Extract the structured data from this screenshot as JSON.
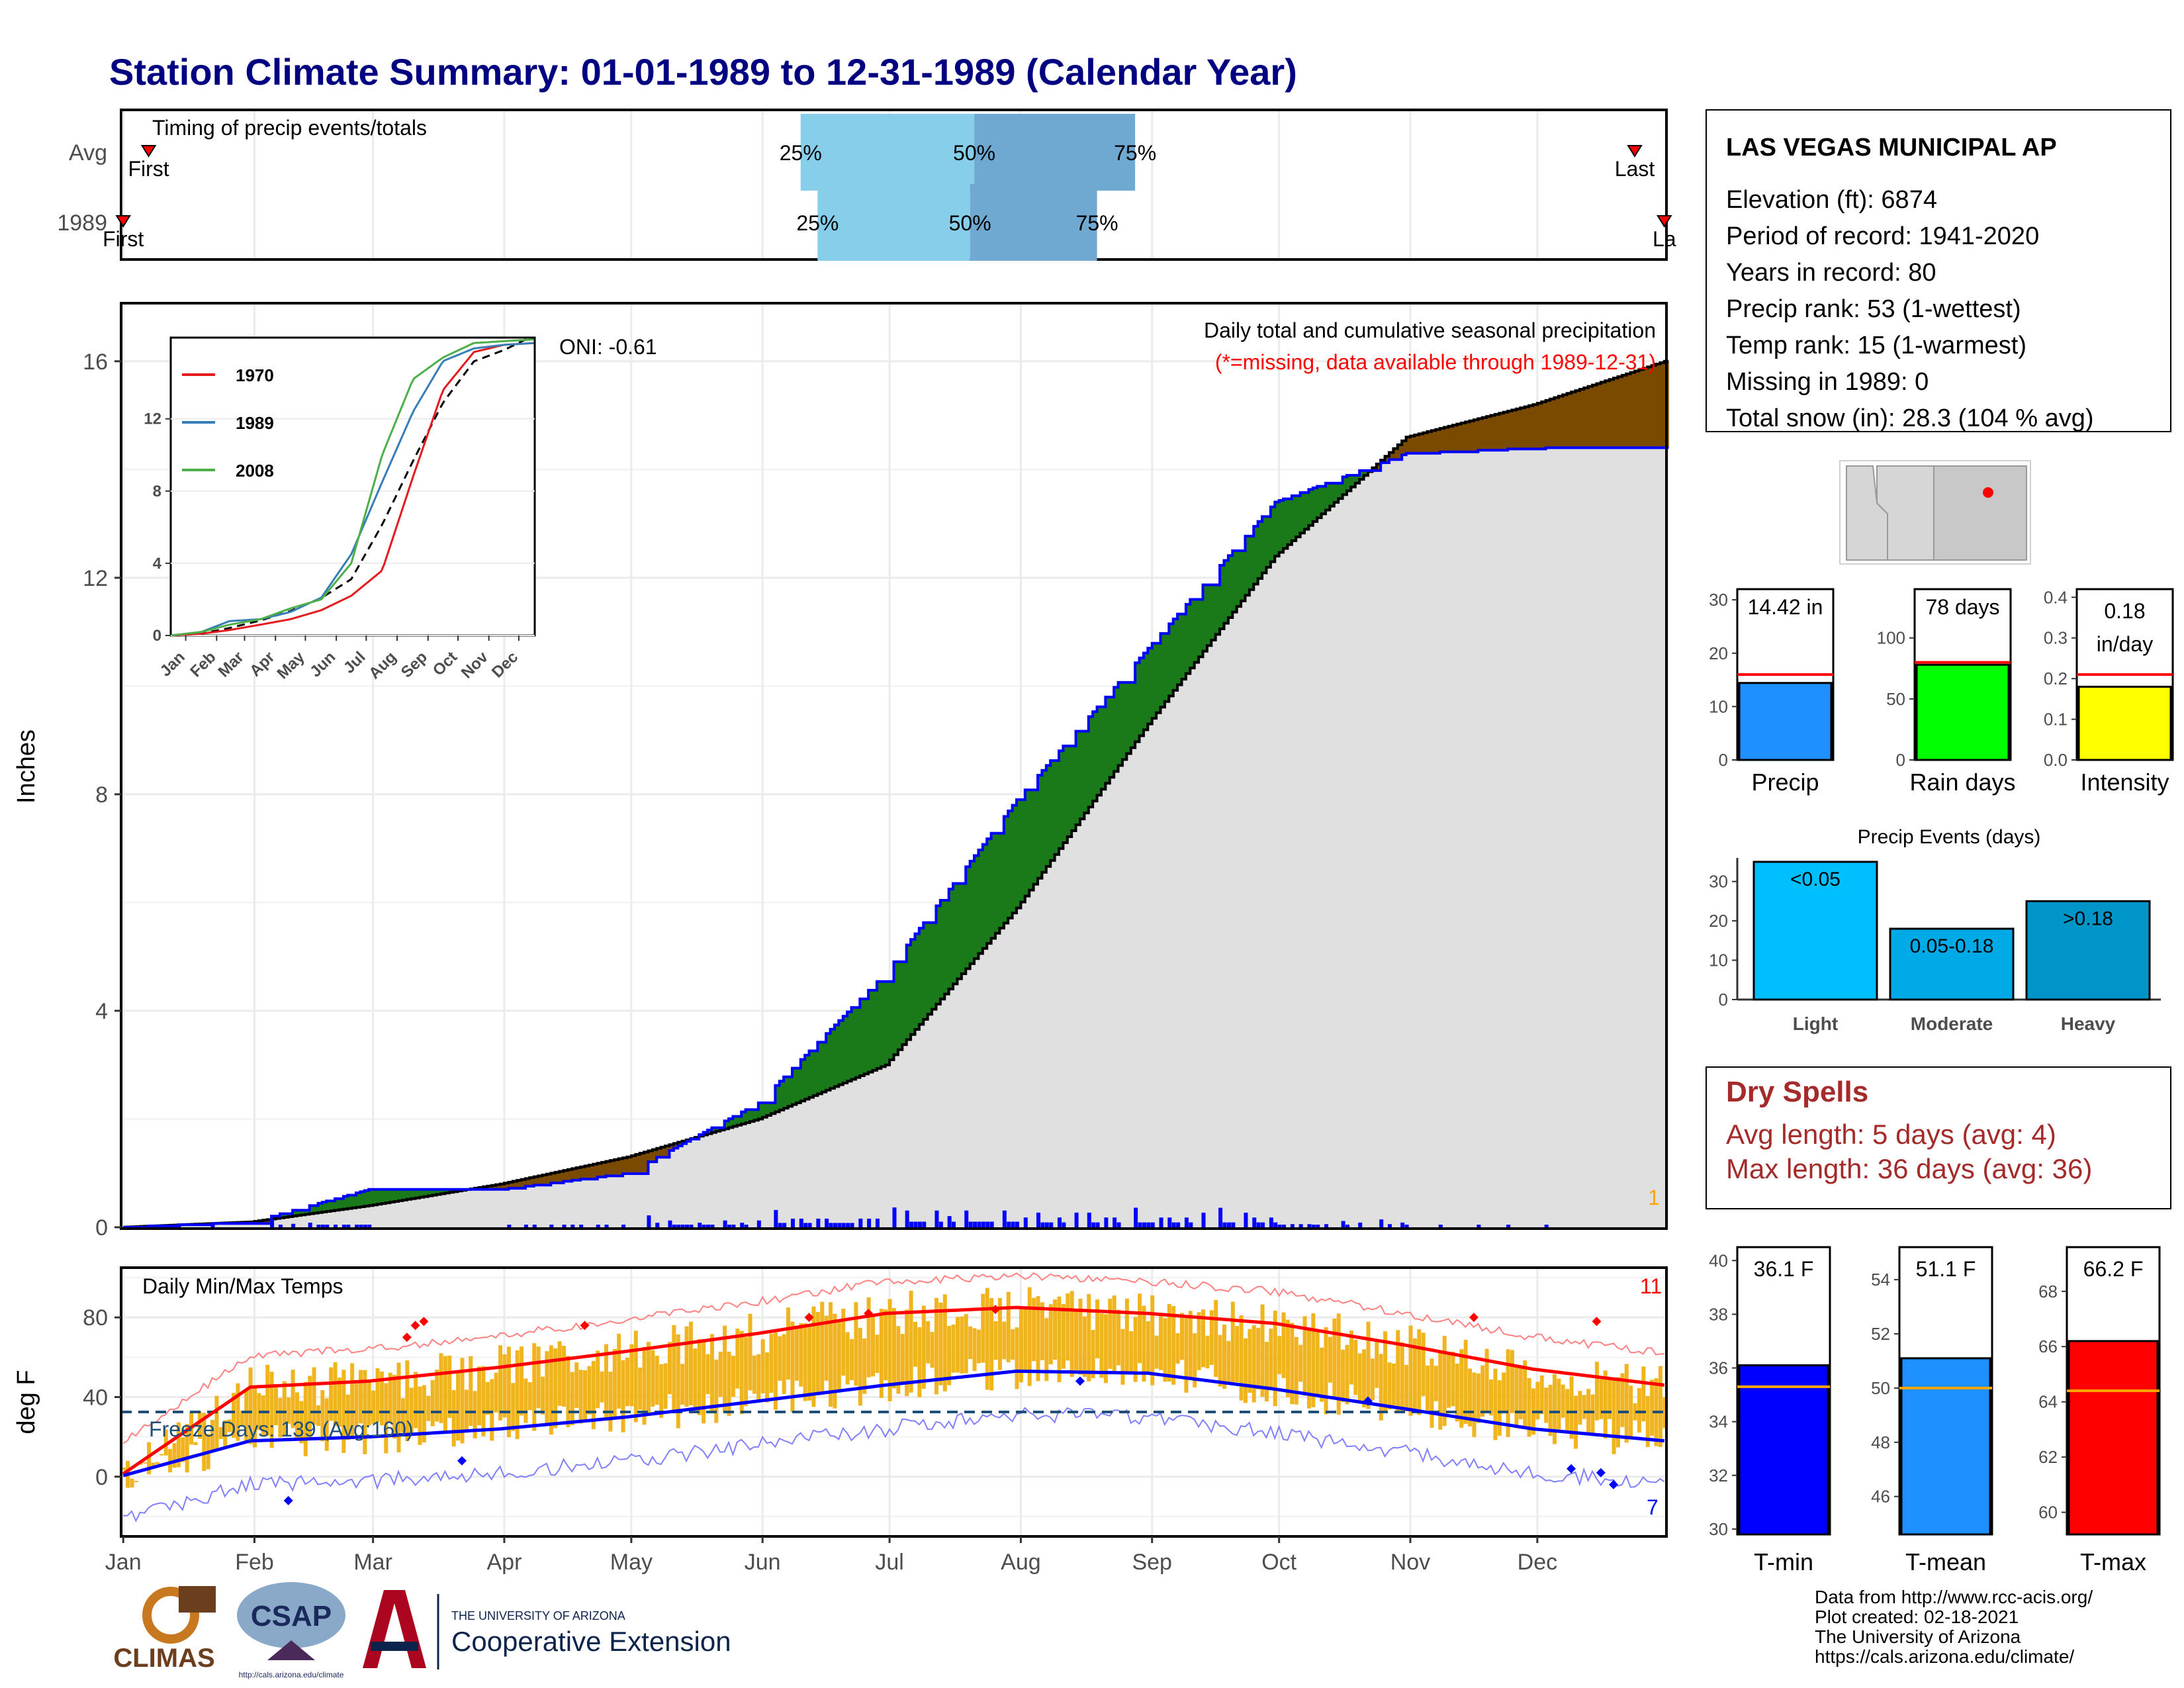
{
  "title": "Station Climate Summary: 01-01-1989 to 12-31-1989 (Calendar Year)",
  "colors": {
    "title": "#000080",
    "accum_ahead": "#7a4a00",
    "accum_behind": "#1a7a1a",
    "daily_bar": "#0000ff",
    "cum_fill": "#e0e0e0",
    "tmax_bar": "#f0b41e",
    "tmax_line": "#ff0000",
    "tmin_line": "#0000ff",
    "timing_light": "#87ceeb",
    "timing_dark": "#6fa8d0"
  },
  "timing": {
    "title": "Timing of precip events/totals",
    "rows": [
      {
        "label": "Avg",
        "first_label": "First",
        "last_label": "Last",
        "first_doy": 7,
        "last_doy": 358,
        "p25_doy": 161,
        "p50_doy": 202,
        "p75_doy": 240,
        "p25_label": "25%",
        "p50_label": "50%",
        "p75_label": "75%"
      },
      {
        "label": "1989",
        "first_label": "First",
        "last_label": "La",
        "first_doy": 1,
        "last_doy": 365,
        "p25_doy": 165,
        "p50_doy": 201,
        "p75_doy": 231,
        "p25_label": "25%",
        "p50_label": "50%",
        "p75_label": "75%"
      }
    ]
  },
  "precip_panel": {
    "ylabel": "Inches",
    "yticks": [
      "0",
      "4",
      "8",
      "12",
      "16"
    ],
    "ymax": 17,
    "caption": "Daily total and cumulative seasonal precipitation",
    "missing_note": "(*=missing, data available through 1989-12-31)",
    "oni": "ONI: -0.61",
    "corner_count": "1"
  },
  "inset": {
    "yticks": [
      "0",
      "4",
      "8",
      "12"
    ],
    "months": [
      "Jan",
      "Feb",
      "Mar",
      "Apr",
      "May",
      "Jun",
      "Jul",
      "Aug",
      "Sep",
      "Oct",
      "Nov",
      "Dec"
    ],
    "legend": [
      {
        "name": "1970",
        "color": "#e41a1c"
      },
      {
        "name": "1989",
        "color": "#377eb8"
      },
      {
        "name": "2008",
        "color": "#4daf4a"
      }
    ]
  },
  "temp_panel": {
    "ylabel": "deg F",
    "yticks": [
      "0",
      "40",
      "80"
    ],
    "title": "Daily Min/Max Temps",
    "freeze_text": "Freeze Days: 139 (Avg:160)",
    "hot_count": "11",
    "cold_count": "7"
  },
  "months": [
    "Jan",
    "Feb",
    "Mar",
    "Apr",
    "May",
    "Jun",
    "Jul",
    "Aug",
    "Sep",
    "Oct",
    "Nov",
    "Dec"
  ],
  "station": {
    "name": "LAS VEGAS MUNICIPAL AP",
    "lines": [
      "Elevation (ft): 6874",
      "Period of record: 1941-2020",
      "Years in record: 80",
      "Precip rank: 53 (1-wettest)",
      "Temp rank: 15 (1-warmest)",
      "Missing in 1989: 0",
      "Total snow (in): 28.3 (104 % avg)"
    ]
  },
  "mini_bars": [
    {
      "label": "Precip",
      "value_label": "14.42 in",
      "value": 14.42,
      "avg": 16.0,
      "ymax": 32,
      "yticks": [
        "0",
        "10",
        "20",
        "30"
      ],
      "tick_values": [
        0,
        10,
        20,
        30
      ],
      "color": "#1e90ff"
    },
    {
      "label": "Rain days",
      "value_label": "78 days",
      "value": 78,
      "avg": 80,
      "ymax": 140,
      "yticks": [
        "0",
        "50",
        "100"
      ],
      "tick_values": [
        0,
        50,
        100
      ],
      "color": "#00ff00"
    },
    {
      "label": "Intensity",
      "value_label": "0.18 in/day",
      "value": 0.18,
      "avg": 0.21,
      "ymax": 0.42,
      "yticks": [
        "0.0",
        "0.1",
        "0.2",
        "0.3",
        "0.4"
      ],
      "tick_values": [
        0,
        0.1,
        0.2,
        0.3,
        0.4
      ],
      "color": "#ffff00"
    }
  ],
  "events": {
    "title": "Precip Events (days)",
    "yticks": [
      "0",
      "10",
      "20",
      "30"
    ],
    "bars": [
      {
        "label": "Light",
        "value": 35,
        "text": "<0.05",
        "color": "#00bfff"
      },
      {
        "label": "Moderate",
        "value": 18,
        "text": "0.05-0.18",
        "color": "#00aae6"
      },
      {
        "label": "Heavy",
        "value": 25,
        "text": ">0.18",
        "color": "#0095c8"
      }
    ]
  },
  "dry_spells": {
    "title": "Dry Spells",
    "line1": "Avg length: 5 days (avg: 4)",
    "line2": "Max length: 36 days (avg: 36)"
  },
  "temp_bars": [
    {
      "label": "T-min",
      "value_label": "36.1 F",
      "value": 36.1,
      "avg": 35.3,
      "ymin": 29.8,
      "ymax": 40.5,
      "yticks": [
        "30",
        "32",
        "34",
        "36",
        "38",
        "40"
      ],
      "tick_values": [
        30,
        32,
        34,
        36,
        38,
        40
      ],
      "color": "#0000ff"
    },
    {
      "label": "T-mean",
      "value_label": "51.1 F",
      "value": 51.1,
      "avg": 50.0,
      "ymin": 44.6,
      "ymax": 55.2,
      "yticks": [
        "46",
        "48",
        "50",
        "52",
        "54"
      ],
      "tick_values": [
        46,
        48,
        50,
        52,
        54
      ],
      "color": "#1e90ff"
    },
    {
      "label": "T-max",
      "value_label": "66.2 F",
      "value": 66.2,
      "avg": 64.4,
      "ymin": 59.2,
      "ymax": 69.6,
      "yticks": [
        "60",
        "62",
        "64",
        "66",
        "68"
      ],
      "tick_values": [
        60,
        62,
        64,
        66,
        68
      ],
      "color": "#ff0000"
    }
  ],
  "footer": {
    "lines": [
      "Data from http://www.rcc-acis.org/",
      "Plot created: 02-18-2021",
      "The University of Arizona",
      "https://cals.arizona.edu/climate/"
    ],
    "logo_climas": "CLIMAS",
    "logo_csap": "CSAP",
    "logo_csap_url": "http://cals.arizona.edu/climate",
    "ua_small": "THE UNIVERSITY OF ARIZONA",
    "ua_big": "Cooperative Extension"
  },
  "chart_data": [
    {
      "type": "line",
      "title": "Daily total and cumulative seasonal precipitation",
      "ylabel": "Inches",
      "ylim": [
        0,
        17
      ],
      "x": [
        "Jan",
        "Feb",
        "Mar",
        "Apr",
        "May",
        "Jun",
        "Jul",
        "Aug",
        "Sep",
        "Oct",
        "Nov",
        "Dec"
      ],
      "series": [
        {
          "name": "1989",
          "values": [
            0.1,
            0.7,
            0.7,
            1.0,
            2.3,
            4.7,
            7.9,
            10.7,
            13.4,
            14.3,
            14.4,
            14.42
          ]
        },
        {
          "values": [
            0.1,
            0.4,
            0.8,
            1.3,
            2.0,
            3.0,
            5.9,
            9.3,
            12.4,
            14.6,
            15.2,
            16.0
          ]
        }
      ]
    },
    {
      "type": "line",
      "title": "Daily Min/Max Temps",
      "ylabel": "deg F",
      "x": [
        "Jan",
        "Feb",
        "Mar",
        "Apr",
        "May",
        "Jun",
        "Jul",
        "Aug",
        "Sep",
        "Oct",
        "Nov",
        "Dec"
      ],
      "series": [
        {
          "values": [
            45,
            48,
            55,
            63,
            72,
            82,
            85,
            82,
            77,
            66,
            54,
            46
          ]
        },
        {
          "values": [
            18,
            20,
            24,
            30,
            38,
            46,
            53,
            52,
            44,
            34,
            24,
            18
          ]
        }
      ]
    }
  ]
}
